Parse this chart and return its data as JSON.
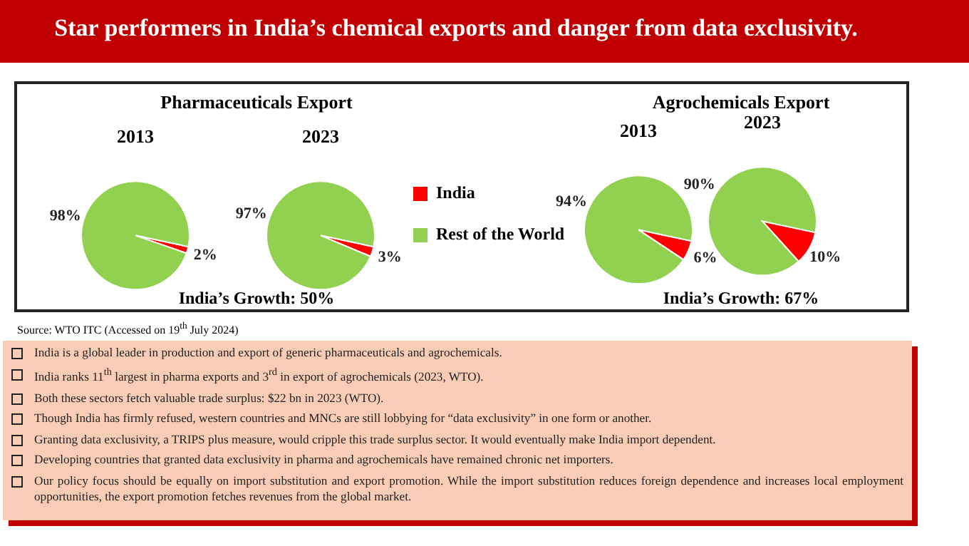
{
  "chart_data": [
    {
      "type": "pie",
      "title": "2013",
      "categories": [
        "India",
        "Rest of the World"
      ],
      "values": [
        2,
        98
      ],
      "colors": [
        "#ff0000",
        "#92d050"
      ],
      "value_labels": [
        "2%",
        "98%"
      ],
      "legend": "right",
      "annotations": [
        "Star performers in India’s chemical exports and danger from data exclusivity.",
        "Pharmaceuticals Export",
        "India’s Growth: 50%",
        "Source: WTO ITC (Accessed on 19$^{th}$ July 2024)",
        "India is a global leader in production and export of generic pharmaceuticals  and agrochemicals.",
        "India ranks 11$^{th}$ largest in pharma exports and 3$^{rd}$ in export of agrochemicals  (2023, WTO).",
        "Both these sectors fetch valuable trade surplus: $22 bn in 2023 (WTO).",
        "Though India has firmly refused, western countries and MNCs are still lobbying for “data exclusivity” in one form or another.",
        "Granting data exclusivity, a TRIPS plus measure, would cripple this trade surplus sector. It would eventually make India import dependent.",
        "Developing countries that granted data exclusivity in pharma and agrochemicals  have remained chronic net importers.",
        "Our policy focus should be equally on import substitution and export promotion. While the import substitution reduces foreign dependence and increases local employment opportunities, the export promotion fetches revenues from the global market."
      ]
    },
    {
      "type": "pie",
      "title": "2023",
      "categories": [
        null,
        null
      ],
      "values": [
        3,
        97
      ],
      "colors": [
        "#ff0000",
        "#92d050"
      ],
      "value_labels": [
        "3%",
        "97%"
      ]
    },
    {
      "type": "pie",
      "title": "2013",
      "categories": [
        null,
        null
      ],
      "values": [
        6,
        94
      ],
      "colors": [
        "#ff0000",
        "#92d050"
      ],
      "value_labels": [
        "6%",
        "94%"
      ],
      "annotations": [
        "Agrochemicals Export",
        "India’s Growth: 67%"
      ]
    },
    {
      "type": "pie",
      "title": "2023",
      "categories": [
        null,
        null
      ],
      "values": [
        10,
        90
      ],
      "colors": [
        "#ff0000",
        "#92d050"
      ],
      "value_labels": [
        "10%",
        "90%"
      ]
    }
  ]
}
